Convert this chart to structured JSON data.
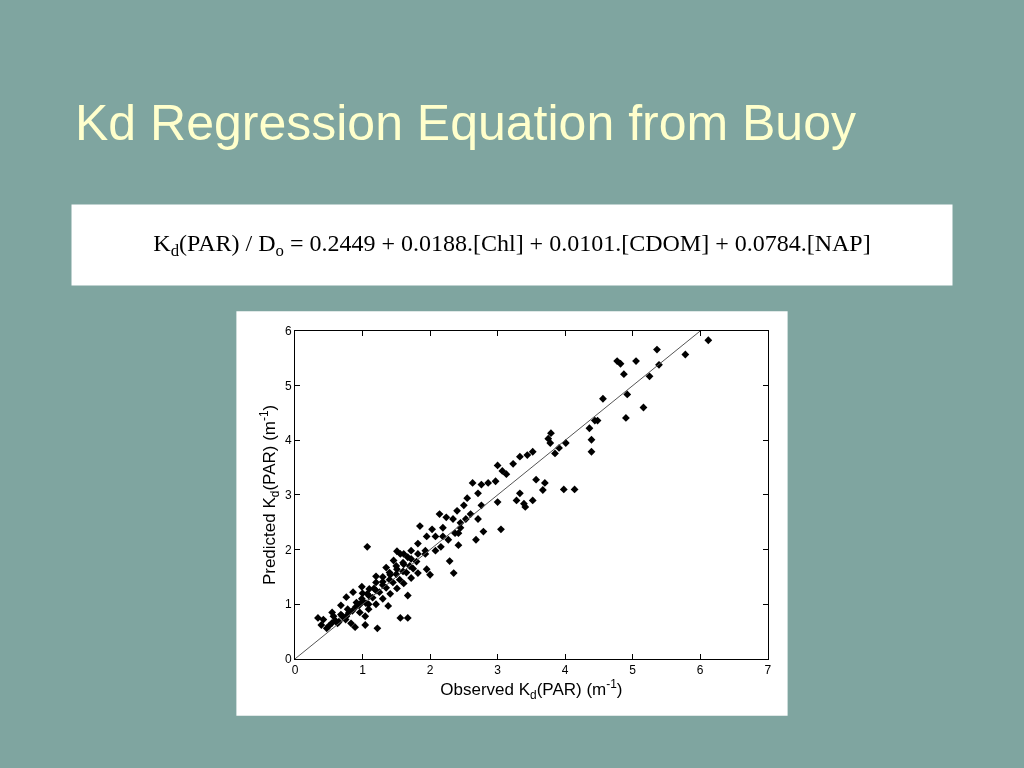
{
  "chart_data": {
    "type": "scatter",
    "title": "Kd Regression Equation from Buoy",
    "subtitle": "K$_{d}$(PAR) / D$_{o}$ = 0.2449 + 0.0188.[Chl] + 0.0101.[CDOM] + 0.0784.[NAP]",
    "xlabel": "Observed K$_{d}$(PAR) (m$^{-1}$)",
    "ylabel": "Predicted K$_{d}$(PAR) (m$^{-1}$)",
    "xlim": [
      0,
      7
    ],
    "xticks": [
      0,
      1,
      2,
      3,
      4,
      5,
      6,
      7
    ],
    "ylim": [
      0,
      6
    ],
    "yticks": [
      0,
      1,
      2,
      3,
      4,
      5,
      6
    ],
    "series": [
      {
        "color": "#000000",
        "marker": "diamond",
        "x": [
          0.5,
          0.55,
          0.6,
          0.65,
          0.7,
          0.75,
          0.8,
          0.85,
          0.9,
          0.95,
          1.0,
          1.05,
          1.1,
          1.15,
          1.2,
          1.25,
          1.3,
          1.35,
          1.4,
          1.45,
          1.5,
          1.55,
          1.6,
          1.65,
          1.7,
          1.75,
          1.8,
          1.0,
          1.1,
          1.2,
          1.3,
          1.4,
          1.5,
          1.6,
          6.12,
          5.36,
          5.78,
          4.77,
          4.82,
          5.05,
          4.87,
          5.39,
          5.25,
          4.92,
          5.16,
          4.9,
          4.56,
          4.48,
          4.44,
          4.36,
          4.39,
          4.39,
          4.01,
          3.91,
          3.85,
          3.79,
          3.75,
          3.78,
          4.14,
          3.98,
          3.7,
          3.67,
          3.57,
          3.52,
          3.39,
          3.41,
          3.33,
          3.28,
          3.52,
          3.44,
          3.33,
          3.23,
          3.13,
          3.0,
          3.07,
          2.97,
          3.0,
          3.05,
          2.86,
          2.76,
          2.63,
          2.71,
          2.76,
          2.71,
          2.79,
          2.68,
          2.55,
          2.5,
          2.4,
          2.34,
          2.45,
          2.42,
          2.42,
          2.24,
          2.14,
          2.19,
          2.08,
          2.29,
          2.35,
          2.03,
          1.95,
          1.85,
          1.93,
          2.0,
          1.95,
          1.82,
          1.72,
          1.61,
          1.51,
          1.07,
          0.34,
          0.39,
          0.47,
          0.42,
          0.57,
          0.68,
          0.78,
          0.63,
          0.83,
          0.89,
          0.76,
          0.91,
          0.99,
          1.07,
          1.17,
          1.3,
          1.41,
          1.51,
          1.61,
          1.72,
          1.82,
          1.93,
          0.86,
          0.76,
          0.99,
          1.2,
          1.35,
          1.46,
          1.56,
          1.67,
          1.09,
          1.2,
          1.3,
          1.41,
          1.51,
          1.61,
          1.72,
          1.82,
          1.67,
          1.56,
          1.67,
          1.22,
          1.04,
          1.09,
          1.38,
          0.68,
          0.55,
          0.96,
          1.04,
          2.08,
          2.16,
          2.27,
          2.37,
          2.45,
          2.53,
          2.6,
          2.19
        ],
        "values": [
          0.6,
          0.66,
          0.7,
          0.68,
          0.78,
          0.72,
          0.85,
          0.88,
          0.95,
          0.98,
          1.05,
          1.02,
          1.15,
          1.12,
          1.25,
          1.22,
          1.35,
          1.3,
          1.45,
          1.4,
          1.55,
          1.45,
          1.6,
          1.58,
          1.7,
          1.65,
          1.78,
          1.2,
          1.28,
          1.4,
          1.5,
          1.58,
          1.7,
          1.76,
          5.83,
          5.66,
          5.57,
          5.45,
          5.4,
          5.45,
          5.21,
          5.38,
          5.17,
          4.84,
          4.6,
          4.41,
          4.76,
          4.36,
          4.36,
          4.22,
          4.01,
          3.79,
          3.95,
          3.86,
          3.76,
          4.13,
          4.03,
          3.95,
          3.1,
          3.1,
          3.22,
          3.09,
          3.28,
          2.9,
          2.84,
          2.78,
          3.03,
          2.9,
          3.79,
          3.73,
          3.7,
          3.57,
          3.38,
          3.54,
          3.44,
          3.25,
          2.87,
          2.37,
          3.22,
          3.19,
          3.22,
          3.03,
          2.81,
          2.56,
          2.33,
          2.18,
          2.94,
          2.81,
          2.71,
          2.56,
          2.49,
          2.3,
          2.08,
          2.59,
          2.65,
          2.4,
          2.24,
          1.79,
          1.57,
          2.37,
          2.24,
          2.43,
          1.92,
          1.54,
          1.64,
          2.11,
          1.98,
          1.92,
          1.97,
          2.05,
          0.75,
          0.62,
          0.56,
          0.72,
          0.78,
          0.81,
          0.91,
          0.65,
          0.65,
          0.58,
          0.78,
          1.03,
          1.1,
          1.19,
          1.29,
          1.41,
          1.54,
          1.64,
          1.73,
          1.83,
          1.92,
          1.98,
          1.22,
          1.13,
          1.32,
          1.51,
          1.67,
          1.8,
          1.92,
          1.86,
          0.91,
          1.0,
          1.1,
          1.19,
          1.29,
          1.38,
          1.48,
          1.57,
          1.16,
          0.75,
          0.75,
          0.56,
          0.62,
          1.0,
          0.97,
          0.98,
          0.85,
          0.85,
          0.78,
          1.98,
          2.05,
          2.18,
          2.3,
          2.4,
          2.56,
          2.65,
          2.24
        ]
      },
      {
        "type": "line",
        "color": "#555555",
        "marker": "none",
        "line_style": "solid",
        "x": [
          0,
          6
        ],
        "values": [
          0,
          6
        ]
      }
    ]
  }
}
